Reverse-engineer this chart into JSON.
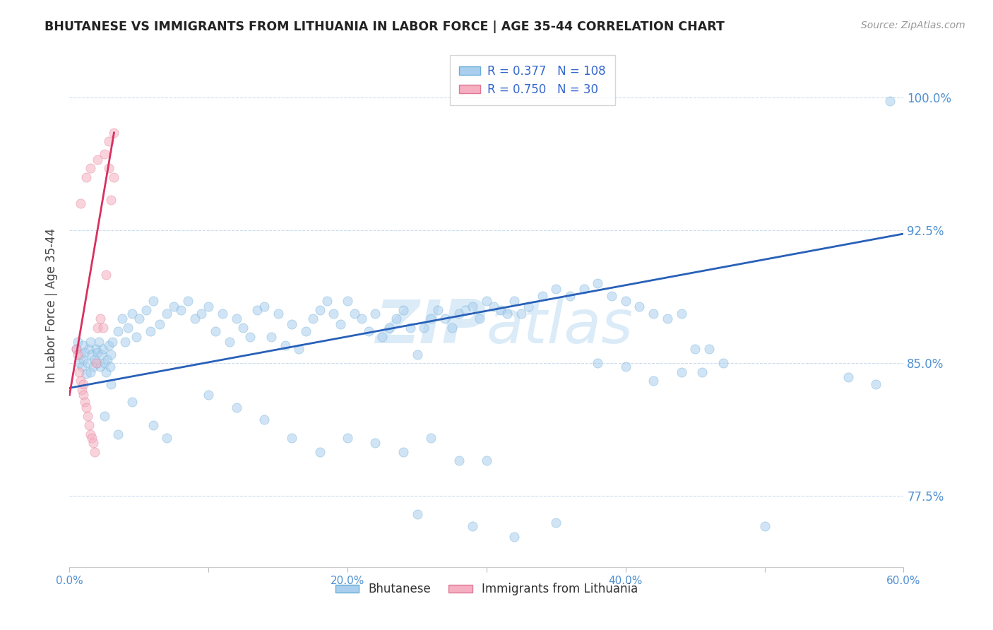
{
  "title": "BHUTANESE VS IMMIGRANTS FROM LITHUANIA IN LABOR FORCE | AGE 35-44 CORRELATION CHART",
  "source_text": "Source: ZipAtlas.com",
  "ylabel": "In Labor Force | Age 35-44",
  "xlim": [
    0.0,
    0.6
  ],
  "ylim": [
    0.735,
    1.03
  ],
  "yticks": [
    0.775,
    0.85,
    0.925,
    1.0
  ],
  "ytick_labels": [
    "77.5%",
    "85.0%",
    "92.5%",
    "100.0%"
  ],
  "xticks": [
    0.0,
    0.1,
    0.2,
    0.3,
    0.4,
    0.5,
    0.6
  ],
  "xtick_labels": [
    "0.0%",
    "",
    "20.0%",
    "",
    "40.0%",
    "",
    "60.0%"
  ],
  "blue_color": "#aacfee",
  "blue_edge_color": "#6aaed6",
  "pink_color": "#f5afc0",
  "pink_edge_color": "#e07898",
  "blue_line_color": "#2860b8",
  "pink_line_color": "#d83060",
  "watermark_color": "#b8d8f0",
  "legend_R_blue": "0.377",
  "legend_N_blue": "108",
  "legend_R_pink": "0.750",
  "legend_N_pink": "30",
  "blue_scatter_x": [
    0.005,
    0.006,
    0.007,
    0.008,
    0.009,
    0.01,
    0.01,
    0.011,
    0.012,
    0.013,
    0.014,
    0.015,
    0.015,
    0.016,
    0.017,
    0.018,
    0.019,
    0.02,
    0.02,
    0.021,
    0.022,
    0.023,
    0.024,
    0.025,
    0.026,
    0.027,
    0.028,
    0.029,
    0.03,
    0.031,
    0.035,
    0.038,
    0.04,
    0.042,
    0.045,
    0.048,
    0.05,
    0.055,
    0.058,
    0.06,
    0.065,
    0.07,
    0.075,
    0.08,
    0.085,
    0.09,
    0.095,
    0.1,
    0.105,
    0.11,
    0.115,
    0.12,
    0.125,
    0.13,
    0.135,
    0.14,
    0.145,
    0.15,
    0.155,
    0.16,
    0.165,
    0.17,
    0.175,
    0.18,
    0.185,
    0.19,
    0.195,
    0.2,
    0.205,
    0.21,
    0.215,
    0.22,
    0.225,
    0.23,
    0.235,
    0.24,
    0.245,
    0.25,
    0.255,
    0.26,
    0.265,
    0.27,
    0.275,
    0.28,
    0.285,
    0.29,
    0.295,
    0.3,
    0.305,
    0.31,
    0.315,
    0.32,
    0.325,
    0.33,
    0.34,
    0.35,
    0.36,
    0.37,
    0.38,
    0.39,
    0.4,
    0.41,
    0.42,
    0.43,
    0.44,
    0.45,
    0.46,
    0.5
  ],
  "blue_scatter_y": [
    0.858,
    0.862,
    0.85,
    0.855,
    0.848,
    0.86,
    0.852,
    0.856,
    0.844,
    0.85,
    0.858,
    0.845,
    0.862,
    0.855,
    0.848,
    0.852,
    0.858,
    0.85,
    0.856,
    0.862,
    0.848,
    0.855,
    0.858,
    0.85,
    0.845,
    0.852,
    0.86,
    0.848,
    0.855,
    0.862,
    0.868,
    0.875,
    0.862,
    0.87,
    0.878,
    0.865,
    0.875,
    0.88,
    0.868,
    0.885,
    0.872,
    0.878,
    0.882,
    0.88,
    0.885,
    0.875,
    0.878,
    0.882,
    0.868,
    0.878,
    0.862,
    0.875,
    0.87,
    0.865,
    0.88,
    0.882,
    0.865,
    0.878,
    0.86,
    0.872,
    0.858,
    0.868,
    0.875,
    0.88,
    0.885,
    0.878,
    0.872,
    0.885,
    0.878,
    0.875,
    0.868,
    0.878,
    0.865,
    0.87,
    0.875,
    0.88,
    0.87,
    0.855,
    0.87,
    0.875,
    0.88,
    0.875,
    0.87,
    0.878,
    0.88,
    0.882,
    0.875,
    0.885,
    0.882,
    0.88,
    0.878,
    0.885,
    0.878,
    0.882,
    0.888,
    0.892,
    0.888,
    0.892,
    0.895,
    0.888,
    0.885,
    0.882,
    0.878,
    0.875,
    0.878,
    0.858,
    0.858,
    0.758
  ],
  "blue_scatter_x_extra": [
    0.03,
    0.025,
    0.035,
    0.045,
    0.06,
    0.07,
    0.1,
    0.12,
    0.14,
    0.16,
    0.18,
    0.2,
    0.22,
    0.24,
    0.26,
    0.28,
    0.3,
    0.25,
    0.29,
    0.32,
    0.35,
    0.42,
    0.56,
    0.58,
    0.59,
    0.38,
    0.4,
    0.44,
    0.455,
    0.47
  ],
  "blue_scatter_y_extra": [
    0.838,
    0.82,
    0.81,
    0.828,
    0.815,
    0.808,
    0.832,
    0.825,
    0.818,
    0.808,
    0.8,
    0.808,
    0.805,
    0.8,
    0.808,
    0.795,
    0.795,
    0.765,
    0.758,
    0.752,
    0.76,
    0.84,
    0.842,
    0.838,
    0.998,
    0.85,
    0.848,
    0.845,
    0.845,
    0.85
  ],
  "pink_scatter_x": [
    0.005,
    0.006,
    0.007,
    0.008,
    0.009,
    0.01,
    0.01,
    0.011,
    0.012,
    0.013,
    0.014,
    0.015,
    0.016,
    0.017,
    0.018,
    0.019,
    0.02,
    0.022,
    0.024,
    0.026,
    0.028,
    0.03,
    0.032,
    0.008,
    0.012,
    0.015,
    0.02,
    0.025,
    0.028,
    0.032
  ],
  "pink_scatter_y": [
    0.858,
    0.855,
    0.845,
    0.84,
    0.835,
    0.838,
    0.832,
    0.828,
    0.825,
    0.82,
    0.815,
    0.81,
    0.808,
    0.805,
    0.8,
    0.85,
    0.87,
    0.875,
    0.87,
    0.9,
    0.96,
    0.942,
    0.955,
    0.94,
    0.955,
    0.96,
    0.965,
    0.968,
    0.975,
    0.98
  ],
  "blue_trend_x": [
    0.0,
    0.6
  ],
  "blue_trend_y": [
    0.836,
    0.923
  ],
  "pink_trend_x": [
    0.0,
    0.032
  ],
  "pink_trend_y": [
    0.832,
    0.98
  ],
  "marker_size": 90,
  "alpha": 0.55
}
